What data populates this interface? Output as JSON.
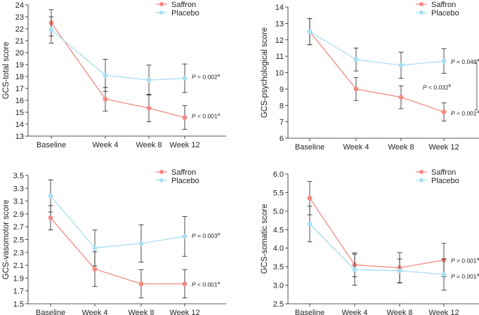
{
  "colors": {
    "saffron": "#f28b82",
    "placebo": "#a8dff2",
    "axis": "#231f20"
  },
  "legend": {
    "saffron_label": "Saffron",
    "placebo_label": "Placebo"
  },
  "chart_data": [
    {
      "type": "line",
      "ylabel": "GCS-total score",
      "categories": [
        "Baseline",
        "Week 4",
        "Week 8",
        "Week 12"
      ],
      "ylim": [
        13,
        24
      ],
      "yticks": [
        13,
        14,
        15,
        16,
        17,
        18,
        19,
        20,
        21,
        22,
        23,
        24
      ],
      "series": [
        {
          "name": "Saffron",
          "values": [
            22.5,
            16.1,
            15.35,
            14.55
          ],
          "err": [
            1.1,
            1.0,
            1.15,
            1.0
          ]
        },
        {
          "name": "Placebo",
          "values": [
            21.9,
            18.1,
            17.7,
            17.85
          ],
          "err": [
            1.1,
            1.35,
            1.25,
            1.2
          ]
        }
      ],
      "annotations": [
        {
          "series": "Placebo",
          "prefix": "P",
          "text": " = 0.002",
          "sup": "a"
        },
        {
          "series": "Saffron",
          "prefix": "P",
          "text": " < 0.001",
          "sup": "a"
        }
      ]
    },
    {
      "type": "line",
      "ylabel": "GCS-psychological score",
      "categories": [
        "Baseline",
        "Week 4",
        "Week 8",
        "Week 12"
      ],
      "ylim": [
        6,
        14
      ],
      "yticks": [
        6,
        7,
        8,
        9,
        10,
        11,
        12,
        13,
        14
      ],
      "series": [
        {
          "name": "Saffron",
          "values": [
            12.5,
            9.0,
            8.5,
            7.6
          ],
          "err": [
            0.8,
            0.7,
            0.7,
            0.55
          ]
        },
        {
          "name": "Placebo",
          "values": [
            12.5,
            10.8,
            10.45,
            10.7
          ],
          "err": [
            0.8,
            0.7,
            0.8,
            0.75
          ]
        }
      ],
      "annotations": [
        {
          "series": "Placebo",
          "prefix": "P",
          "text": " = 0.048",
          "sup": "a"
        },
        {
          "series": "between",
          "prefix": "P",
          "text": " < 0.032",
          "sup": "b"
        },
        {
          "series": "Saffron",
          "prefix": "P",
          "text": " < 0.001",
          "sup": "a"
        }
      ]
    },
    {
      "type": "line",
      "ylabel": "GCS-vasomotor score",
      "categories": [
        "Baseline",
        "Week 4",
        "Week 8",
        "Week 12"
      ],
      "ylim": [
        1.5,
        3.5
      ],
      "yticks": [
        1.5,
        1.7,
        1.9,
        2.1,
        2.3,
        2.5,
        2.7,
        2.9,
        3.1,
        3.3,
        3.5
      ],
      "series": [
        {
          "name": "Saffron",
          "values": [
            2.84,
            2.04,
            1.81,
            1.81
          ],
          "err": [
            0.19,
            0.27,
            0.22,
            0.22
          ]
        },
        {
          "name": "Placebo",
          "values": [
            3.18,
            2.37,
            2.44,
            2.55
          ],
          "err": [
            0.25,
            0.28,
            0.29,
            0.31
          ]
        }
      ],
      "annotations": [
        {
          "series": "Placebo",
          "prefix": "P",
          "text": " = 0.003",
          "sup": "a"
        },
        {
          "series": "Saffron",
          "prefix": "P",
          "text": " < 0.001",
          "sup": "a"
        }
      ]
    },
    {
      "type": "line",
      "ylabel": "GCS-somatic score",
      "categories": [
        "Baseline",
        "Week 4",
        "Week 8",
        "Week 12"
      ],
      "ylim": [
        2.5,
        6.0
      ],
      "yticks": [
        2.5,
        3.0,
        3.5,
        4.0,
        4.5,
        5.0,
        5.5,
        6.0
      ],
      "ytick_labels": [
        "2.5",
        "3.0",
        "3.5",
        "4.0",
        "4.5",
        "5.0",
        "5.5",
        "6.0"
      ],
      "series": [
        {
          "name": "Saffron",
          "values": [
            5.35,
            3.55,
            3.47,
            3.68
          ],
          "err": [
            0.45,
            0.32,
            0.41,
            0.45
          ]
        },
        {
          "name": "Placebo",
          "values": [
            4.65,
            3.42,
            3.39,
            3.29
          ],
          "err": [
            0.48,
            0.42,
            0.32,
            0.42
          ]
        }
      ],
      "annotations": [
        {
          "series": "Saffron",
          "prefix": "P",
          "text": " = 0.001",
          "sup": "a"
        },
        {
          "series": "Placebo",
          "prefix": "P",
          "text": " = 0.001",
          "sup": "a"
        }
      ]
    }
  ]
}
